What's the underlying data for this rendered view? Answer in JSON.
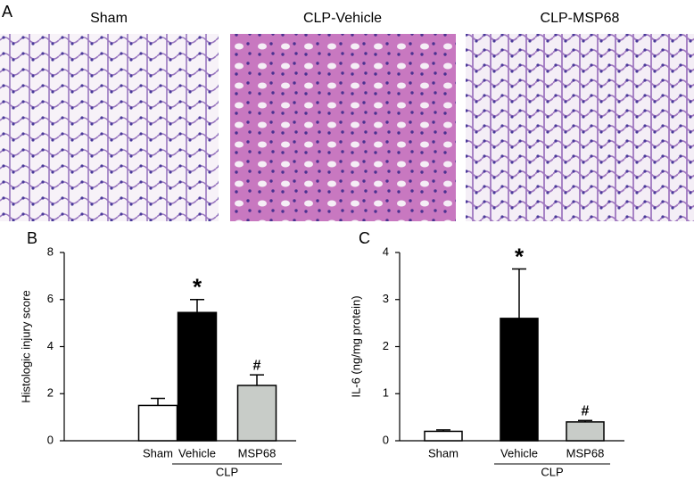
{
  "panel_a": {
    "label": "A",
    "images": [
      {
        "title": "Sham"
      },
      {
        "title": "CLP-Vehicle"
      },
      {
        "title": "CLP-MSP68"
      }
    ]
  },
  "chart_data": [
    {
      "type": "bar",
      "panel_label": "B",
      "y_label": "Histologic injury score",
      "categories": [
        "Sham",
        "Vehicle",
        "MSP68"
      ],
      "group_label": "CLP",
      "values": [
        1.5,
        5.45,
        2.35
      ],
      "errors": [
        0.3,
        0.55,
        0.45
      ],
      "annotations": [
        null,
        "*",
        "#"
      ],
      "colors": [
        "#ffffff",
        "#000000",
        "#c8ccc8"
      ],
      "ylim": [
        0,
        8
      ],
      "yticks": [
        0,
        2,
        4,
        6,
        8
      ]
    },
    {
      "type": "bar",
      "panel_label": "C",
      "y_label": "IL-6 (ng/mg protein)",
      "categories": [
        "Sham",
        "Vehicle",
        "MSP68"
      ],
      "group_label": "CLP",
      "values": [
        0.2,
        2.6,
        0.4
      ],
      "errors": [
        0.03,
        1.05,
        0.03
      ],
      "annotations": [
        null,
        "*",
        "#"
      ],
      "colors": [
        "#ffffff",
        "#000000",
        "#c8ccc8"
      ],
      "ylim": [
        0,
        4
      ],
      "yticks": [
        0,
        1,
        2,
        3,
        4
      ]
    }
  ]
}
